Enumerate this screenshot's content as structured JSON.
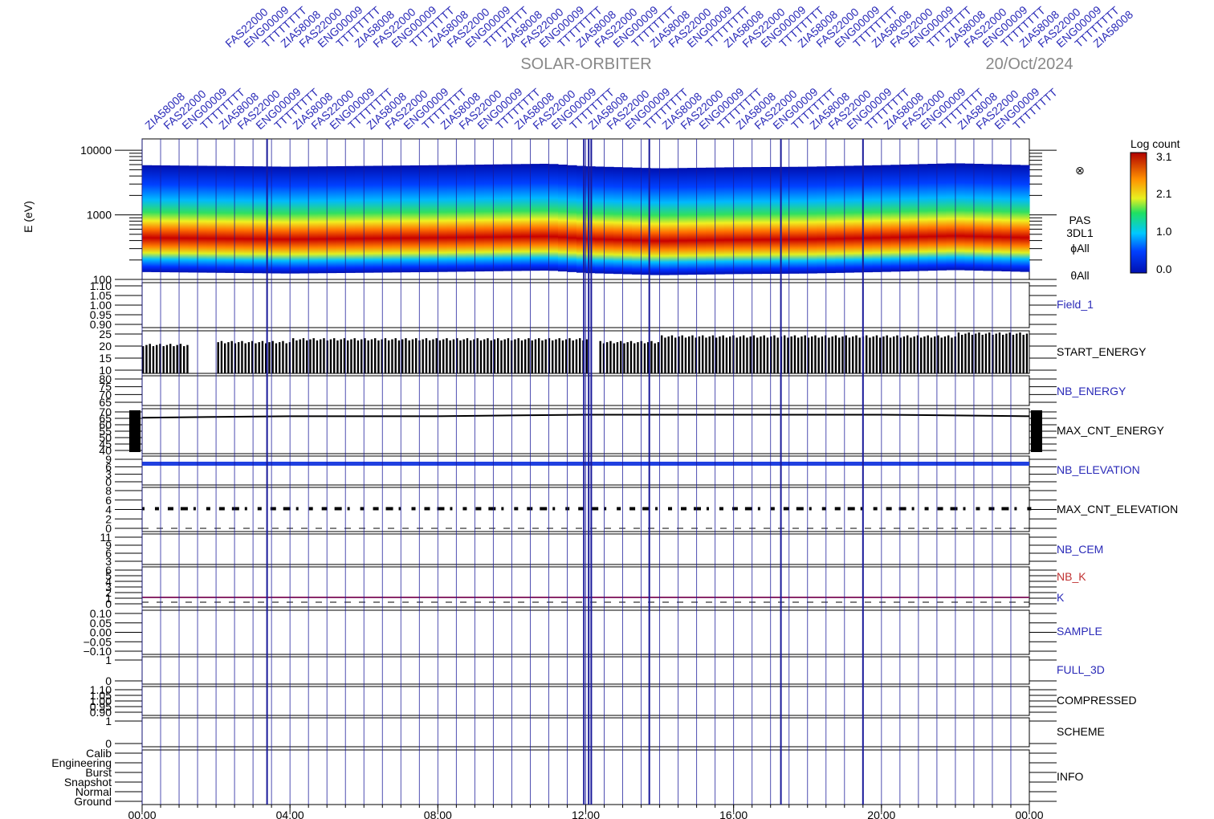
{
  "header": {
    "mission": "SOLAR-ORBITER",
    "date": "20/Oct/2024"
  },
  "colors": {
    "event_line": "#1a1a9a",
    "panel_frame": "#000000",
    "cmd_text": "#2a2ab8",
    "nb_k": "#c03030",
    "k_line": "#8a2a6a",
    "nb_elevation_trace": "#2040e0"
  },
  "command_labels": [
    "ZIA58008",
    "FAS22000",
    "ENG00009",
    "TTTTTTTT"
  ],
  "chart_data": [
    {
      "type": "heatmap",
      "panel": "spectrogram",
      "ylabel": "E (eV)",
      "yscale": "log",
      "ylim": [
        100,
        15000
      ],
      "y_ticks": [
        "10000",
        "1000",
        "100"
      ],
      "side_labels": [
        "PAS",
        "3DL1",
        "ϕAll",
        "θAll"
      ],
      "colorbar": {
        "title": "Log count",
        "ticks": [
          "3.1",
          "2.1",
          "1.0",
          "0.0"
        ],
        "range": [
          0.0,
          3.1
        ]
      },
      "peak_energy_eV": {
        "x_hours": [
          0,
          4,
          8,
          11,
          12,
          14,
          16,
          18,
          20,
          22,
          24
        ],
        "values": [
          560,
          530,
          560,
          590,
          540,
          500,
          520,
          530,
          560,
          600,
          560
        ]
      }
    },
    {
      "type": "line",
      "panel": "Field_1",
      "label": "Field_1",
      "label_color": "blue",
      "y_ticks": [
        "1.10",
        "1.05",
        "1.00",
        "0.95",
        "0.90"
      ]
    },
    {
      "type": "bar",
      "panel": "START_ENERGY",
      "label": "START_ENERGY",
      "label_color": "black",
      "y_ticks": [
        "25",
        "20",
        "15",
        "10"
      ],
      "ylim": [
        10,
        25
      ],
      "x_hours": [
        0,
        2,
        4,
        6,
        8,
        10,
        12,
        14,
        16,
        18,
        20,
        22,
        24
      ],
      "values": [
        20,
        21,
        22,
        22,
        22,
        22,
        21,
        23,
        23,
        23,
        23,
        24,
        24
      ]
    },
    {
      "type": "line",
      "panel": "NB_ENERGY",
      "label": "NB_ENERGY",
      "label_color": "blue",
      "y_ticks": [
        "80",
        "75",
        "70",
        "65"
      ]
    },
    {
      "type": "line",
      "panel": "MAX_CNT_ENERGY",
      "label": "MAX_CNT_ENERGY",
      "label_color": "black",
      "y_ticks": [
        "70",
        "65",
        "60",
        "55",
        "50",
        "45",
        "40"
      ],
      "ylim": [
        40,
        70
      ],
      "x_hours": [
        0,
        4,
        8,
        12,
        16,
        20,
        24
      ],
      "values": [
        64,
        65,
        65,
        66,
        66,
        66,
        65
      ]
    },
    {
      "type": "line",
      "panel": "NB_ELEVATION",
      "label": "NB_ELEVATION",
      "label_color": "blue",
      "y_ticks": [
        "9",
        "6",
        "3",
        "0"
      ]
    },
    {
      "type": "scatter",
      "panel": "MAX_CNT_ELEVATION",
      "label": "MAX_CNT_ELEVATION",
      "label_color": "black",
      "y_ticks": [
        "8",
        "6",
        "4",
        "2",
        "0"
      ],
      "ylim": [
        0,
        8
      ],
      "typical_value": 4
    },
    {
      "type": "line",
      "panel": "NB_CEM",
      "label": "NB_CEM",
      "label_color": "blue",
      "y_ticks": [
        "11",
        "9",
        "6",
        "3"
      ]
    },
    {
      "type": "line",
      "panel": "NB_K",
      "labels": [
        "NB_K",
        "K"
      ],
      "y_ticks": [
        "6",
        "5",
        "4",
        "3",
        "2",
        "1",
        "0"
      ]
    },
    {
      "type": "line",
      "panel": "SAMPLE",
      "label": "SAMPLE",
      "label_color": "blue",
      "y_ticks": [
        "0.10",
        "0.05",
        "0.00",
        "−0.05",
        "−0.10"
      ]
    },
    {
      "type": "line",
      "panel": "FULL_3D",
      "label": "FULL_3D",
      "label_color": "blue",
      "y_ticks": [
        "1",
        "0"
      ]
    },
    {
      "type": "line",
      "panel": "COMPRESSED",
      "label": "COMPRESSED",
      "label_color": "black",
      "y_ticks": [
        "1.10",
        "1.05",
        "1.00",
        "0.95",
        "0.90"
      ]
    },
    {
      "type": "line",
      "panel": "SCHEME",
      "label": "SCHEME",
      "label_color": "black",
      "y_ticks": [
        "1",
        "0"
      ]
    },
    {
      "type": "line",
      "panel": "INFO",
      "label": "INFO",
      "label_color": "black",
      "y_ticks": [
        "Calib",
        "Engineering",
        "Burst",
        "Snapshot",
        "Normal",
        "Ground"
      ]
    }
  ],
  "x_axis": {
    "ticks": [
      "00:00",
      "04:00",
      "08:00",
      "12:00",
      "16:00",
      "20:00",
      "00:00"
    ],
    "range_hours": [
      0,
      24
    ]
  },
  "event_lines_hours": [
    3.38,
    11.95,
    12.08,
    12.15,
    13.72,
    17.28,
    19.5
  ]
}
